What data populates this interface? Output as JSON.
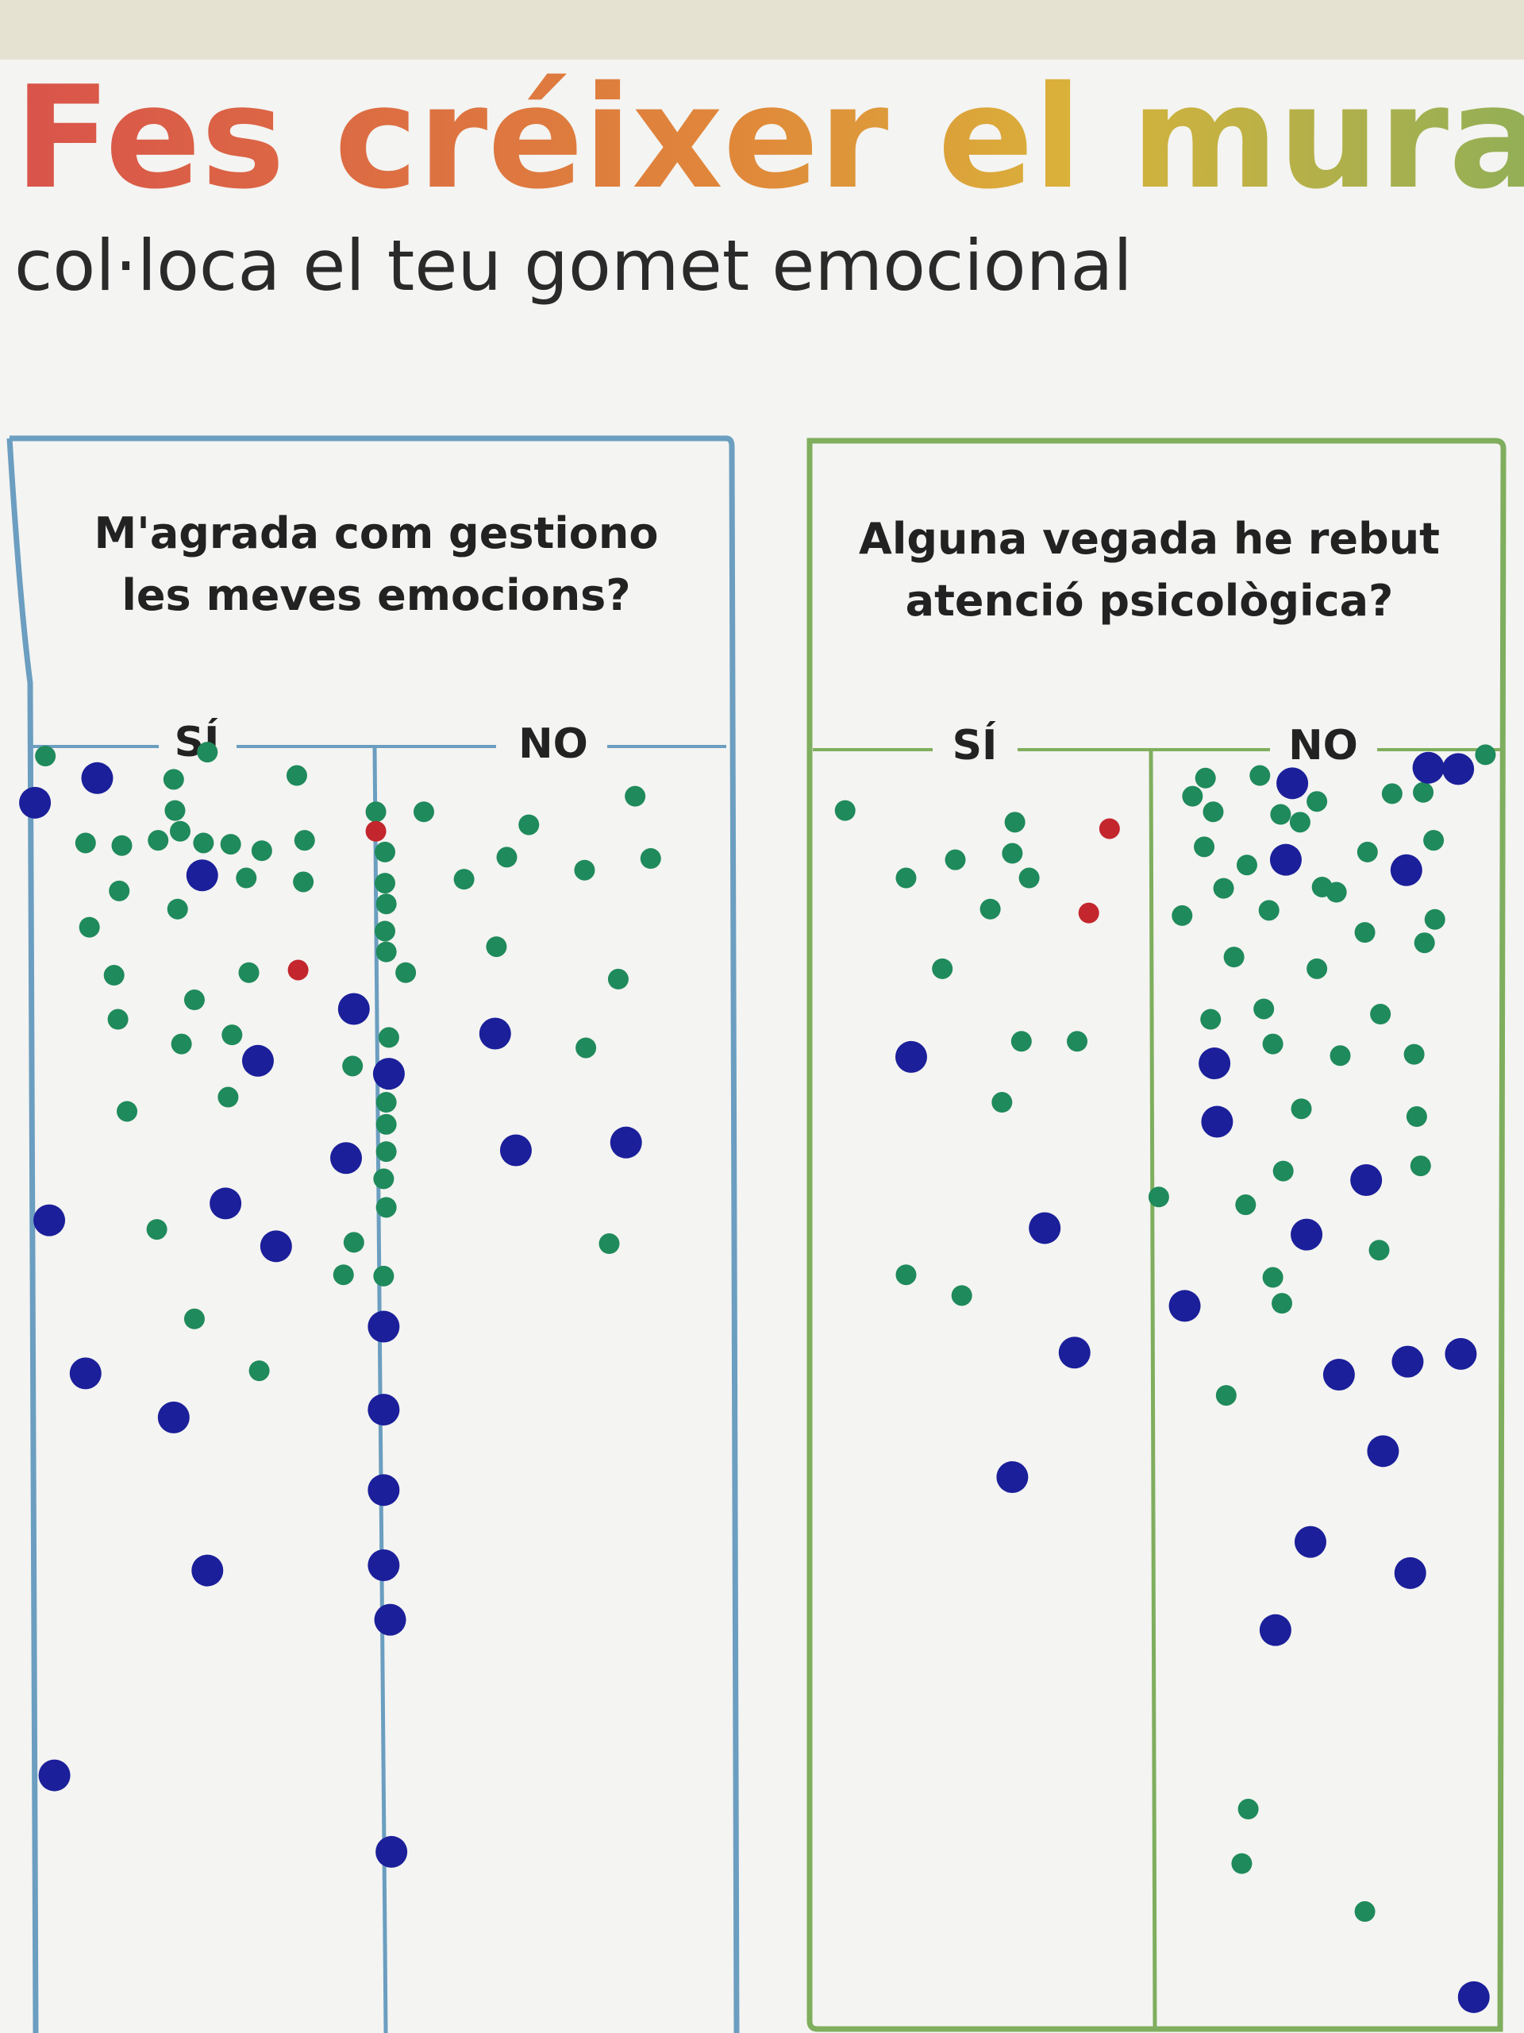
{
  "header": {
    "title": "Fes créixer el mural:",
    "subtitle": "col·loca el teu gomet emocional"
  },
  "panels": [
    {
      "question_lines": [
        "M'agrada com gestiono",
        "les meves emocions?"
      ],
      "yes": "SÍ",
      "no": "NO"
    },
    {
      "question_lines": [
        "Alguna vegada he rebut",
        "atenció psicològica?"
      ],
      "yes": "SÍ",
      "no": "NO"
    }
  ]
}
